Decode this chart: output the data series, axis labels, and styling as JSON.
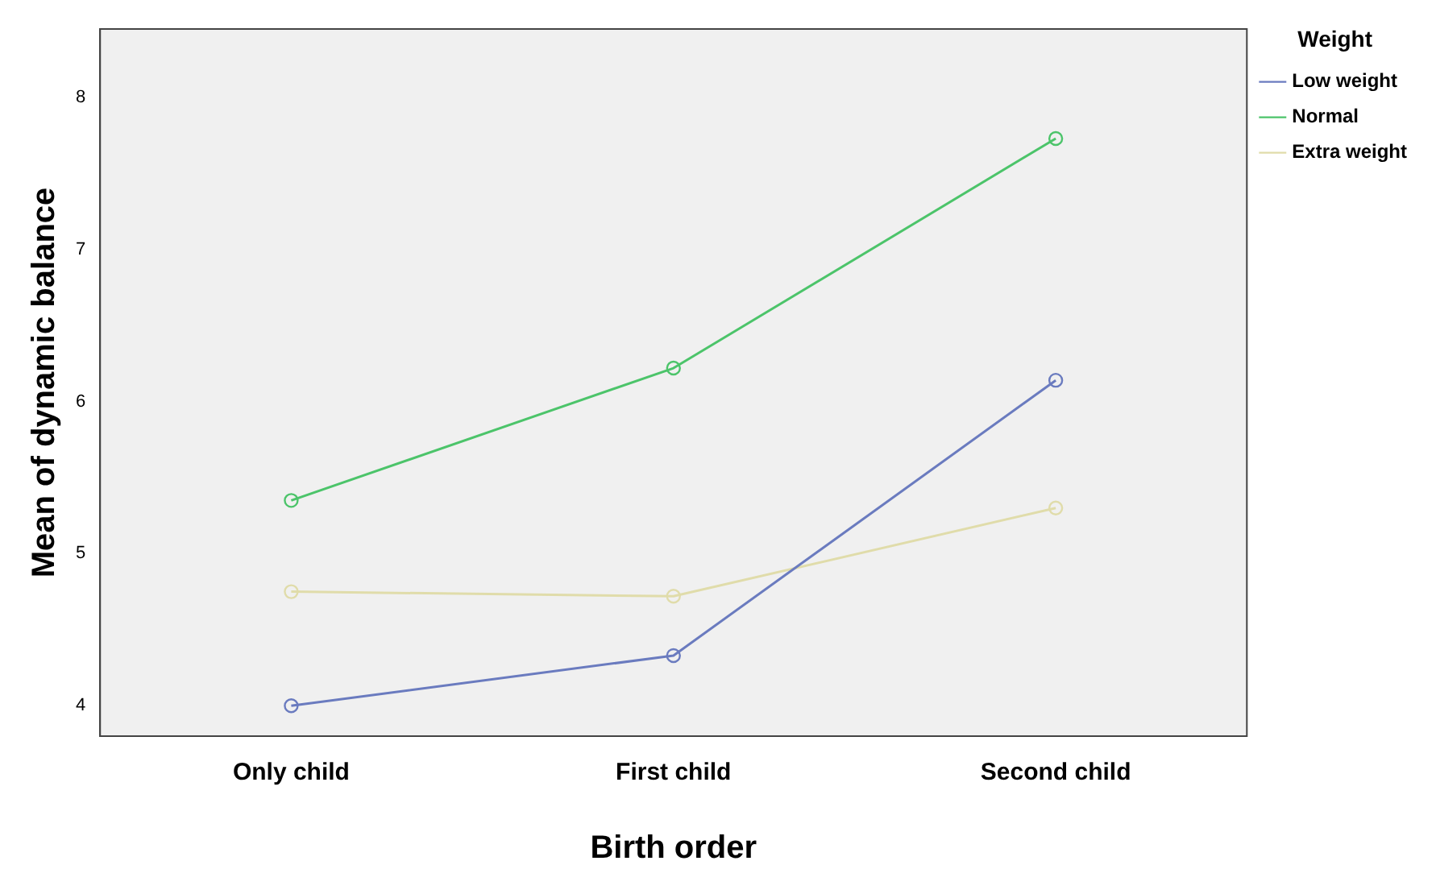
{
  "chart_data": {
    "type": "line",
    "xlabel": "Birth order",
    "ylabel": "Mean of dynamic balance",
    "legend_title": "Weight",
    "categories": [
      "Only child",
      "First child",
      "Second child"
    ],
    "series": [
      {
        "name": "Low weight",
        "color": "#6a7bbf",
        "values": [
          4.0,
          4.33,
          6.14
        ]
      },
      {
        "name": "Normal",
        "color": "#4cc46a",
        "values": [
          5.35,
          6.22,
          7.73
        ]
      },
      {
        "name": "Extra weight",
        "color": "#e0dcaa",
        "values": [
          4.75,
          4.72,
          5.3
        ]
      }
    ],
    "ylim": [
      3.8,
      8.45
    ],
    "yticks": [
      4,
      5,
      6,
      7,
      8
    ],
    "grid": false,
    "legend": "right",
    "marker": "circle",
    "line_style": "solid"
  }
}
